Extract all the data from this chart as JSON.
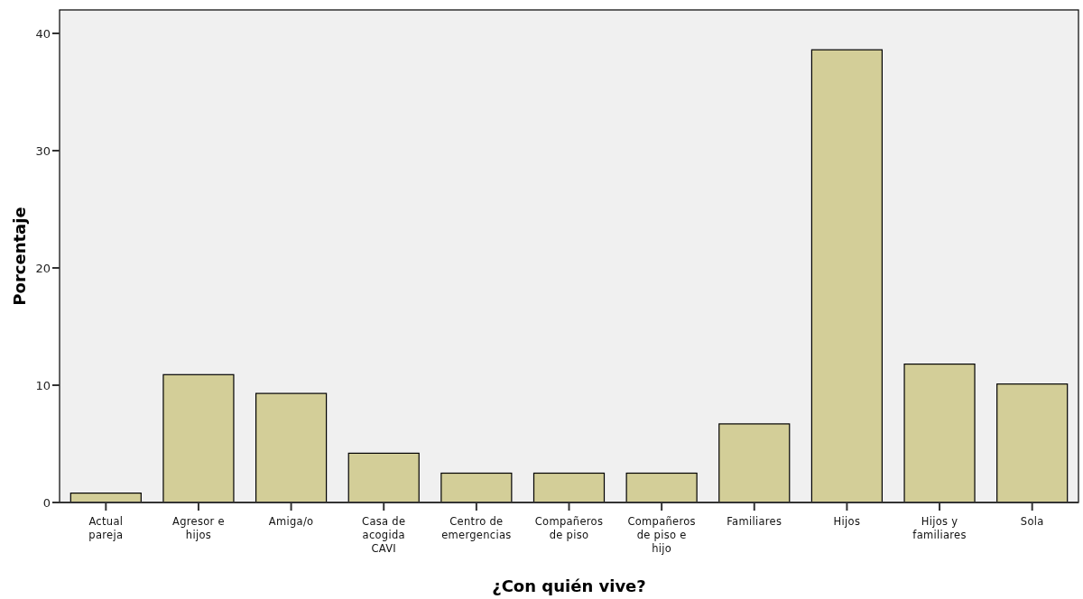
{
  "chart_data": {
    "type": "bar",
    "xlabel": "¿Con quién vive?",
    "ylabel": "Porcentaje",
    "categories": [
      "Actual pareja",
      "Agresor e hijos",
      "Amiga/o",
      "Casa de acogida CAVI",
      "Centro de emergencias",
      "Compañeros de piso",
      "Compañeros de piso e hijo",
      "Familiares",
      "Hijos",
      "Hijos y familiares",
      "Sola"
    ],
    "values": [
      0.8,
      10.9,
      9.3,
      4.2,
      2.5,
      2.5,
      2.5,
      6.7,
      38.6,
      11.8,
      10.1
    ],
    "color": "#d3ce98",
    "ylim": [
      0,
      42
    ],
    "yticks": [
      0,
      10,
      20,
      30,
      40
    ],
    "grid": false
  }
}
